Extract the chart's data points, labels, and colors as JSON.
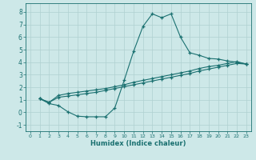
{
  "xlabel": "Humidex (Indice chaleur)",
  "xlim": [
    -0.5,
    23.5
  ],
  "ylim": [
    -1.5,
    8.7
  ],
  "xticks": [
    0,
    1,
    2,
    3,
    4,
    5,
    6,
    7,
    8,
    9,
    10,
    11,
    12,
    13,
    14,
    15,
    16,
    17,
    18,
    19,
    20,
    21,
    22,
    23
  ],
  "yticks": [
    -1,
    0,
    1,
    2,
    3,
    4,
    5,
    6,
    7,
    8
  ],
  "bg_color": "#cde8e8",
  "grid_color": "#b0d0d0",
  "line_color": "#1a7070",
  "line1_x": [
    1,
    2,
    3,
    4,
    5,
    6,
    7,
    8,
    9,
    10,
    11,
    12,
    13,
    14,
    15,
    16,
    17,
    18,
    19,
    20,
    21,
    22,
    23
  ],
  "line1_y": [
    1.1,
    0.7,
    0.55,
    0.05,
    -0.3,
    -0.35,
    -0.35,
    -0.35,
    0.35,
    2.55,
    4.85,
    6.85,
    7.85,
    7.55,
    7.85,
    6.0,
    4.75,
    4.55,
    4.3,
    4.25,
    4.1,
    4.0,
    3.85
  ],
  "line2_x": [
    1,
    2,
    3,
    4,
    5,
    6,
    7,
    8,
    9,
    10,
    11,
    12,
    13,
    14,
    15,
    16,
    17,
    18,
    19,
    20,
    21,
    22,
    23
  ],
  "line2_y": [
    1.1,
    0.8,
    1.35,
    1.5,
    1.6,
    1.7,
    1.8,
    1.9,
    2.05,
    2.2,
    2.4,
    2.55,
    2.7,
    2.85,
    3.0,
    3.15,
    3.3,
    3.5,
    3.65,
    3.75,
    3.9,
    4.05,
    3.85
  ],
  "line3_x": [
    1,
    2,
    3,
    4,
    5,
    6,
    7,
    8,
    9,
    10,
    11,
    12,
    13,
    14,
    15,
    16,
    17,
    18,
    19,
    20,
    21,
    22,
    23
  ],
  "line3_y": [
    1.1,
    0.8,
    1.2,
    1.3,
    1.4,
    1.5,
    1.6,
    1.75,
    1.9,
    2.05,
    2.2,
    2.35,
    2.5,
    2.65,
    2.8,
    2.95,
    3.1,
    3.3,
    3.45,
    3.6,
    3.75,
    3.9,
    3.85
  ]
}
